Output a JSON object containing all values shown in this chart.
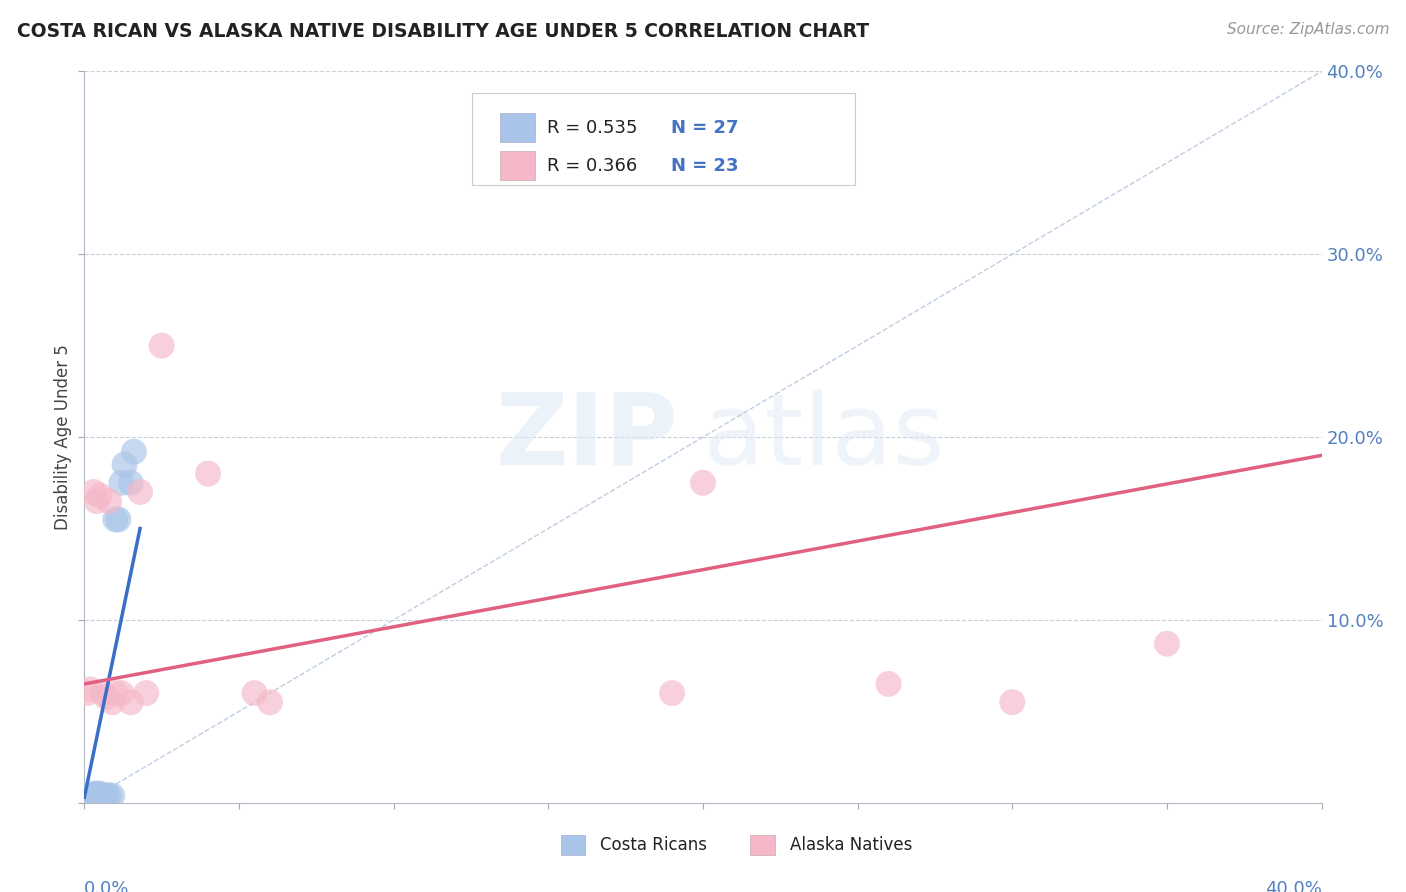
{
  "title": "COSTA RICAN VS ALASKA NATIVE DISABILITY AGE UNDER 5 CORRELATION CHART",
  "source": "Source: ZipAtlas.com",
  "ylabel": "Disability Age Under 5",
  "legend_label1": "Costa Ricans",
  "legend_label2": "Alaska Natives",
  "r1": 0.535,
  "n1": 27,
  "r2": 0.366,
  "n2": 23,
  "xlim": [
    0,
    0.4
  ],
  "ylim": [
    0,
    0.4
  ],
  "color_blue": "#a8c4e8",
  "color_pink": "#f5b8c8",
  "color_blue_line": "#3a6fc8",
  "color_pink_line": "#e06080",
  "color_diag": "#b8c8e0",
  "watermark_zip": "ZIP",
  "watermark_atlas": "atlas",
  "cr_x": [
    0.001,
    0.002,
    0.002,
    0.003,
    0.003,
    0.003,
    0.003,
    0.004,
    0.004,
    0.004,
    0.004,
    0.005,
    0.005,
    0.005,
    0.005,
    0.006,
    0.006,
    0.007,
    0.007,
    0.008,
    0.009,
    0.01,
    0.011,
    0.012,
    0.013,
    0.015,
    0.016
  ],
  "cr_y": [
    0.002,
    0.002,
    0.003,
    0.002,
    0.003,
    0.004,
    0.005,
    0.002,
    0.003,
    0.004,
    0.005,
    0.002,
    0.003,
    0.004,
    0.005,
    0.003,
    0.004,
    0.003,
    0.004,
    0.004,
    0.004,
    0.155,
    0.155,
    0.175,
    0.185,
    0.175,
    0.192
  ],
  "ak_x": [
    0.001,
    0.002,
    0.003,
    0.004,
    0.005,
    0.006,
    0.007,
    0.008,
    0.009,
    0.01,
    0.012,
    0.015,
    0.018,
    0.02,
    0.025,
    0.04,
    0.055,
    0.06,
    0.19,
    0.2,
    0.26,
    0.3,
    0.35
  ],
  "ak_y": [
    0.06,
    0.062,
    0.17,
    0.165,
    0.168,
    0.06,
    0.058,
    0.165,
    0.055,
    0.06,
    0.06,
    0.055,
    0.17,
    0.06,
    0.25,
    0.18,
    0.06,
    0.055,
    0.06,
    0.175,
    0.065,
    0.055,
    0.087
  ],
  "blue_line_x": [
    0.0,
    0.018
  ],
  "blue_line_y": [
    0.003,
    0.15
  ],
  "pink_line_x": [
    0.0,
    0.4
  ],
  "pink_line_y": [
    0.065,
    0.19
  ]
}
